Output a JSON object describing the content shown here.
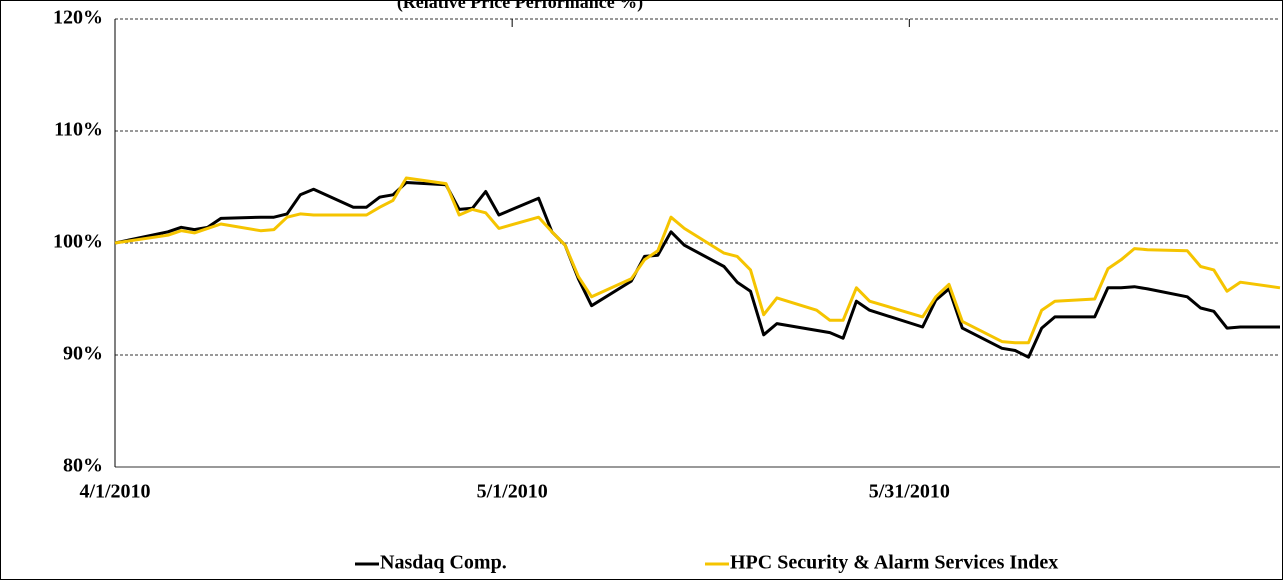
{
  "chart_data": {
    "type": "line",
    "subtitle": "(Relative Price Performance %)",
    "x": [
      "4/1/2010",
      "4/5/2010",
      "4/6/2010",
      "4/7/2010",
      "4/8/2010",
      "4/9/2010",
      "4/12/2010",
      "4/13/2010",
      "4/14/2010",
      "4/15/2010",
      "4/16/2010",
      "4/19/2010",
      "4/20/2010",
      "4/21/2010",
      "4/22/2010",
      "4/23/2010",
      "4/26/2010",
      "4/27/2010",
      "4/28/2010",
      "4/29/2010",
      "4/30/2010",
      "5/3/2010",
      "5/4/2010",
      "5/5/2010",
      "5/6/2010",
      "5/7/2010",
      "5/10/2010",
      "5/11/2010",
      "5/12/2010",
      "5/13/2010",
      "5/14/2010",
      "5/17/2010",
      "5/18/2010",
      "5/19/2010",
      "5/20/2010",
      "5/21/2010",
      "5/24/2010",
      "5/25/2010",
      "5/26/2010",
      "5/27/2010",
      "5/28/2010",
      "6/1/2010",
      "6/2/2010",
      "6/3/2010",
      "6/4/2010",
      "6/7/2010",
      "6/8/2010",
      "6/9/2010",
      "6/10/2010",
      "6/11/2010",
      "6/14/2010",
      "6/15/2010",
      "6/16/2010",
      "6/17/2010",
      "6/18/2010",
      "6/21/2010",
      "6/22/2010",
      "6/23/2010",
      "6/24/2010",
      "6/25/2010",
      "6/28/2010"
    ],
    "series": [
      {
        "name": "Nasdaq Comp.",
        "color": "#000000",
        "values": [
          100,
          101.0,
          101.4,
          101.2,
          101.4,
          102.2,
          102.3,
          102.3,
          102.6,
          104.3,
          104.8,
          103.2,
          103.2,
          104.1,
          104.3,
          105.4,
          105.2,
          103.0,
          103.1,
          104.6,
          102.5,
          104.0,
          101.0,
          99.8,
          96.8,
          94.4,
          96.6,
          98.8,
          98.9,
          101.0,
          99.8,
          97.9,
          96.5,
          95.7,
          91.8,
          92.8,
          92.2,
          92.0,
          91.5,
          94.8,
          94.0,
          92.5,
          94.9,
          95.9,
          92.4,
          90.6,
          90.4,
          89.8,
          92.4,
          93.4,
          93.4,
          96.0,
          96.0,
          96.1,
          95.9,
          95.2,
          94.2,
          93.9,
          92.4,
          92.5,
          92.5
        ]
      },
      {
        "name": "HPC Security & Alarm Services Index",
        "color": "#f5c400",
        "values": [
          100,
          100.7,
          101.1,
          100.9,
          101.3,
          101.7,
          101.1,
          101.2,
          102.3,
          102.6,
          102.5,
          102.5,
          102.5,
          103.2,
          103.8,
          105.8,
          105.3,
          102.5,
          103.0,
          102.7,
          101.3,
          102.3,
          101.0,
          99.8,
          97.0,
          95.2,
          96.8,
          98.5,
          99.3,
          102.3,
          101.3,
          99.1,
          98.8,
          97.6,
          93.6,
          95.1,
          94.0,
          93.1,
          93.1,
          96.0,
          94.8,
          93.4,
          95.2,
          96.3,
          93.0,
          91.2,
          91.1,
          91.1,
          94.0,
          94.8,
          95.0,
          97.7,
          98.5,
          99.5,
          99.4,
          99.3,
          97.9,
          97.6,
          95.7,
          96.5,
          96.0
        ]
      }
    ],
    "xlim": [
      "4/1/2010",
      "6/28/2010"
    ],
    "xticks": [
      "4/1/2010",
      "5/1/2010",
      "5/31/2010"
    ],
    "ylim": [
      80,
      120
    ],
    "yticks": [
      {
        "value": 80,
        "label": "80%"
      },
      {
        "value": 90,
        "label": "90%"
      },
      {
        "value": 100,
        "label": "100%"
      },
      {
        "value": 110,
        "label": "110%"
      },
      {
        "value": 120,
        "label": "120%"
      }
    ],
    "grid": true,
    "legend": "bottom"
  }
}
